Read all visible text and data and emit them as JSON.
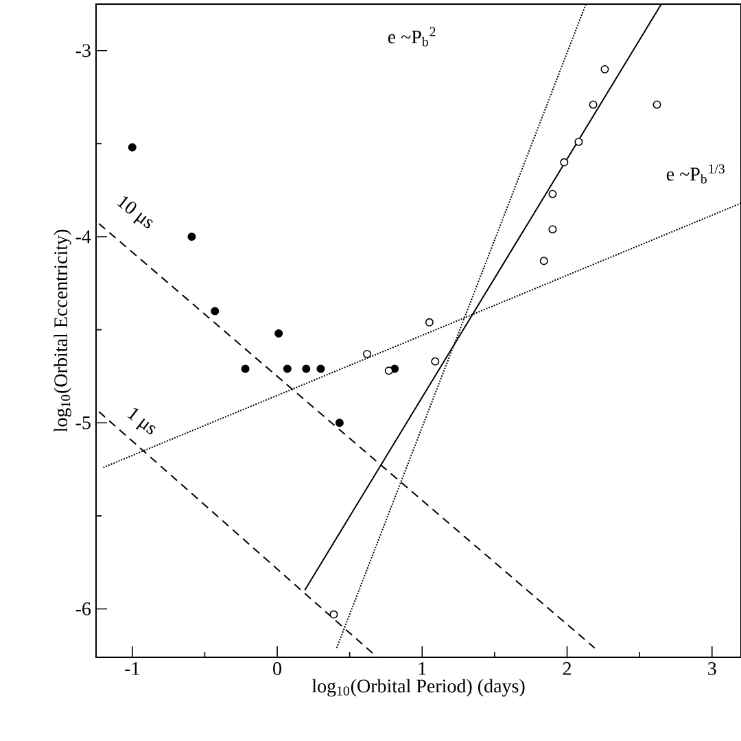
{
  "chart_data": {
    "type": "scatter",
    "xlabel": "log$_{10}$(Orbital Period) (days)",
    "ylabel": "log$_{10}$(Orbital Eccentricity)",
    "marker": "circle",
    "xlim": [
      -1.25,
      3.2
    ],
    "ylim": [
      -6.26,
      -2.75
    ],
    "xticks": [
      -1,
      0,
      1,
      2,
      3
    ],
    "yticks": [
      -6,
      -5,
      -4,
      -3
    ],
    "annotations": [
      "e ~P$_{b}$$^{2}$",
      "e ~P$_{b}$$^{1/3}$",
      "10 μs",
      "1 μs"
    ],
    "series": [
      {
        "color": "#000000",
        "x": [
          -1.0,
          -0.59,
          -0.43,
          0.01,
          -0.22,
          0.07,
          0.2,
          0.3,
          0.43,
          0.81
        ],
        "values": [
          -3.52,
          -4.0,
          -4.4,
          -4.52,
          -4.71,
          -4.71,
          -4.71,
          -4.71,
          -5.0,
          -4.71
        ]
      },
      {
        "color": "#000000",
        "x": [
          2.26,
          2.18,
          2.62,
          2.08,
          1.98,
          1.9,
          1.9,
          1.84,
          1.05,
          0.62,
          1.09,
          0.77,
          0.39
        ],
        "values": [
          -3.1,
          -3.29,
          -3.29,
          -3.49,
          -3.6,
          -3.77,
          -3.96,
          -4.13,
          -4.46,
          -4.63,
          -4.67,
          -4.72,
          -6.03
        ]
      },
      {
        "type": "line",
        "marker": "none",
        "color": "#000000",
        "line_style": "solid",
        "x": [
          0.19,
          2.65
        ],
        "values": [
          -5.9,
          -2.75
        ]
      },
      {
        "type": "line",
        "marker": "none",
        "color": "#000000",
        "line_style": "dotted",
        "x": [
          0.41,
          2.13
        ],
        "values": [
          -6.21,
          -2.75
        ]
      },
      {
        "type": "line",
        "marker": "none",
        "color": "#000000",
        "line_style": "dotted",
        "x": [
          -1.2,
          3.2
        ],
        "values": [
          -5.24,
          -3.82
        ]
      },
      {
        "type": "line",
        "marker": "none",
        "color": "#000000",
        "line_style": "dashed",
        "x": [
          -1.23,
          2.19
        ],
        "values": [
          -3.93,
          -6.21
        ]
      },
      {
        "type": "line",
        "marker": "none",
        "color": "#000000",
        "line_style": "dashed",
        "x": [
          -1.23,
          0.69
        ],
        "values": [
          -4.94,
          -6.26
        ]
      }
    ]
  }
}
